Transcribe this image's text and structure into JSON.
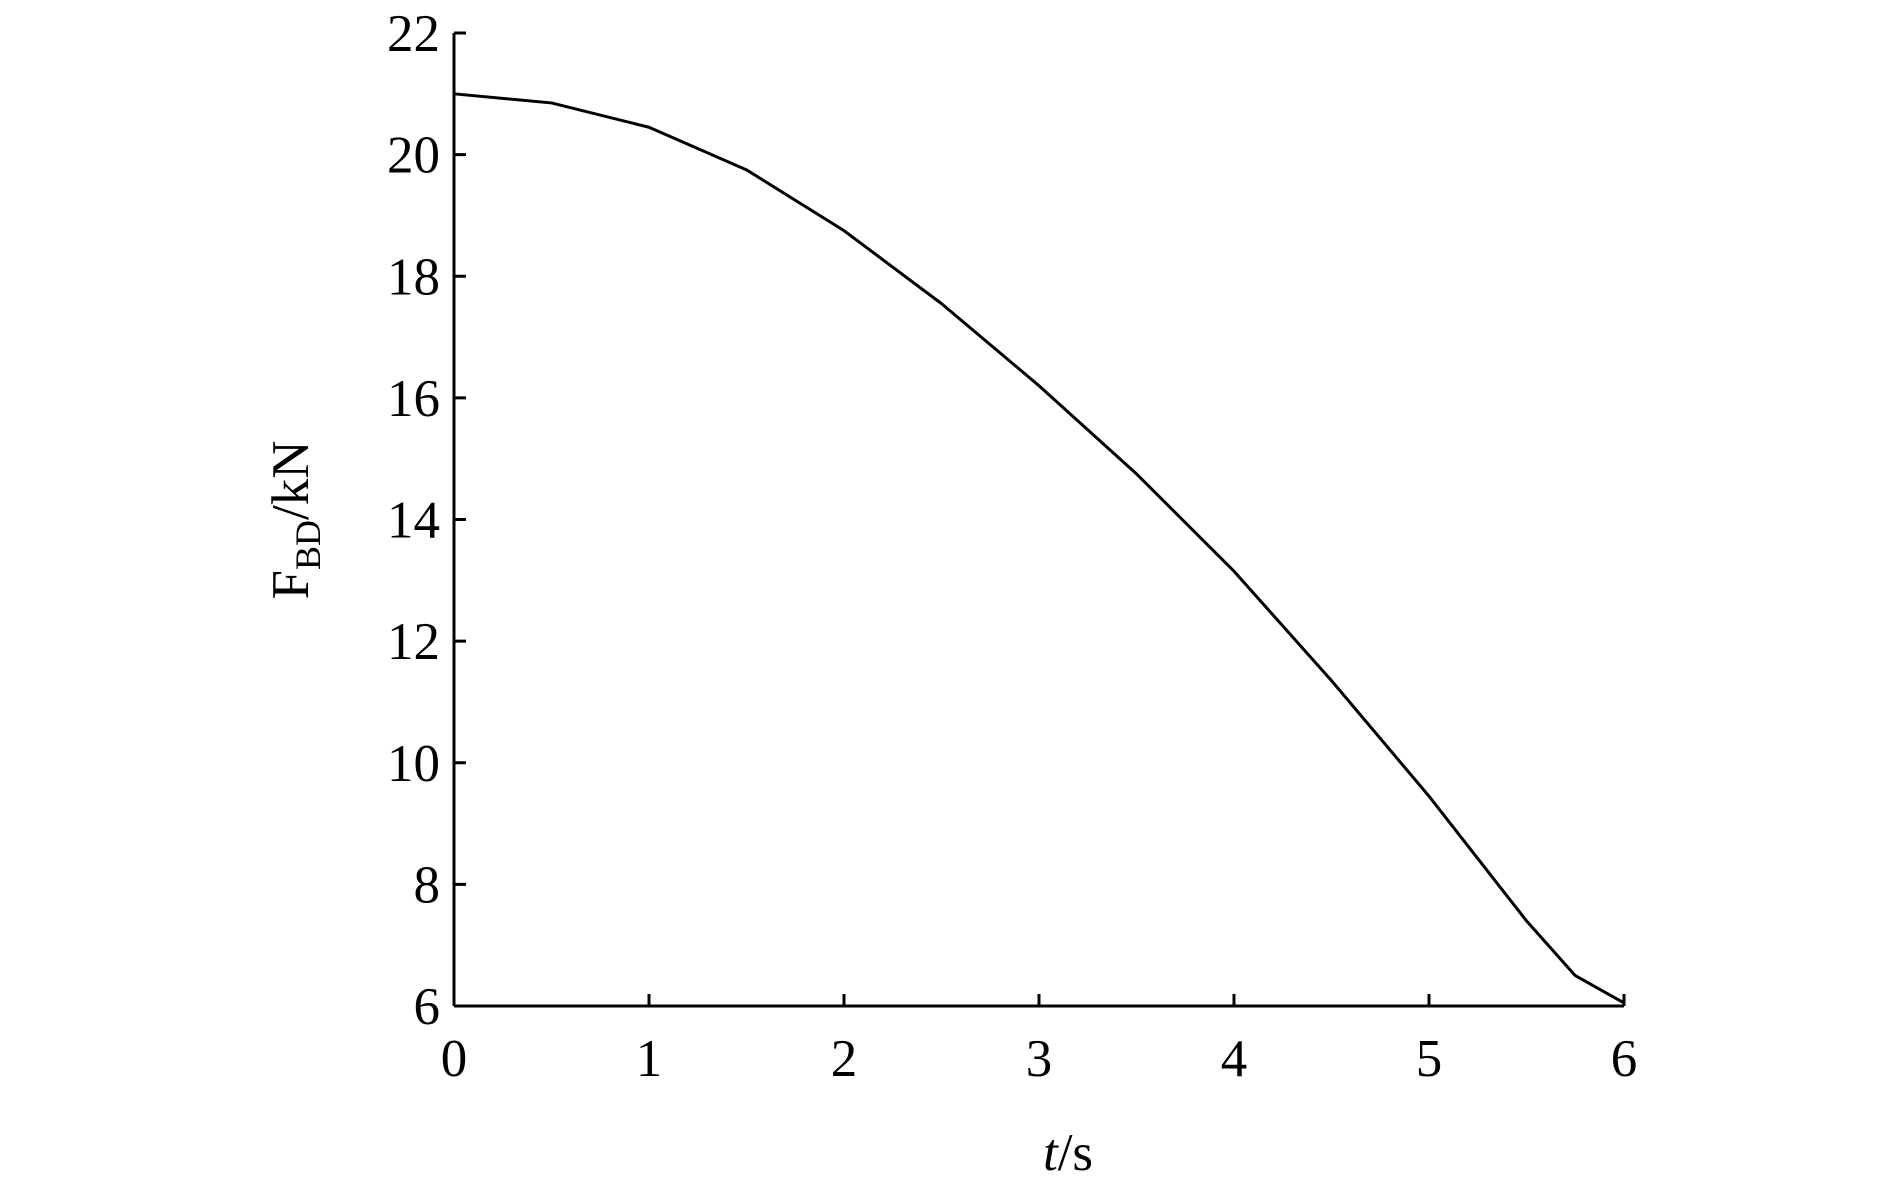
{
  "chart_data": {
    "type": "line",
    "xlabel": {
      "var": "t",
      "unit": "/s"
    },
    "ylabel": {
      "main": "F",
      "sub": "BD",
      "unit": "/kN"
    },
    "x": [
      0,
      0.5,
      1,
      1.5,
      2,
      2.5,
      3,
      3.5,
      4,
      4.5,
      5,
      5.5,
      5.75,
      6
    ],
    "series": [
      {
        "color": "#000000",
        "values": [
          21.0,
          20.85,
          20.45,
          19.75,
          18.75,
          17.55,
          16.2,
          14.75,
          13.15,
          11.35,
          9.45,
          7.4,
          6.5,
          6.05
        ]
      }
    ],
    "xlim": [
      0,
      6
    ],
    "xticks": [
      0,
      1,
      2,
      3,
      4,
      5,
      6
    ],
    "ylim": [
      6,
      22
    ],
    "yticks": [
      6,
      8,
      10,
      12,
      14,
      16,
      18,
      20,
      22
    ],
    "grid": false
  }
}
